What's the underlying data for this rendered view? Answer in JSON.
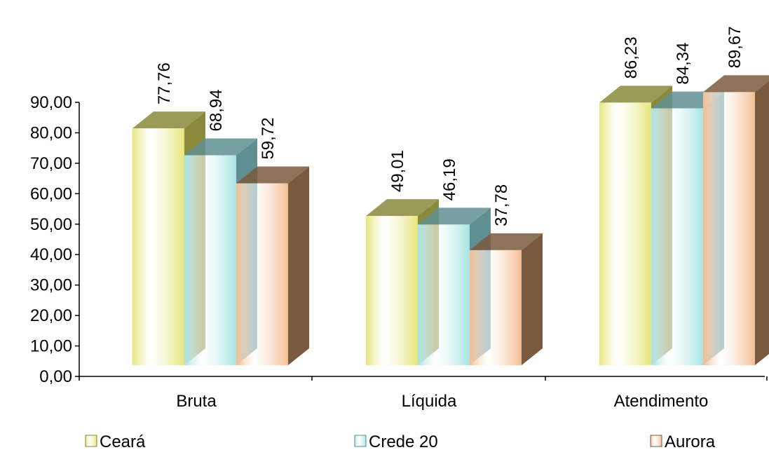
{
  "chart_data": {
    "type": "bar",
    "title": "",
    "xlabel": "",
    "ylabel": "",
    "categories": [
      "Bruta",
      "Líquida",
      "Atendimento"
    ],
    "series": [
      {
        "name": "Ceará",
        "values": [
          77.76,
          49.01,
          86.23
        ],
        "labels": [
          "77,76",
          "49,01",
          "86,23"
        ],
        "color": "#e6e67a",
        "color_dark": "#8a8a3c"
      },
      {
        "name": "Crede 20",
        "values": [
          68.94,
          46.19,
          84.34
        ],
        "labels": [
          "68,94",
          "46,19",
          "84,34"
        ],
        "color": "#a8e4e4",
        "color_dark": "#5f8f92"
      },
      {
        "name": "Aurora",
        "values": [
          59.72,
          37.78,
          89.67
        ],
        "labels": [
          "59,72",
          "37,78",
          "89,67"
        ],
        "color": "#f4be92",
        "color_dark": "#7a5a3e"
      }
    ],
    "ylim": [
      0,
      90
    ],
    "yticks": [
      "0,00",
      "10,00",
      "20,00",
      "30,00",
      "40,00",
      "50,00",
      "60,00",
      "70,00",
      "80,00",
      "90,00"
    ],
    "grid": false,
    "legend": "bottom",
    "style": "3d-column"
  }
}
